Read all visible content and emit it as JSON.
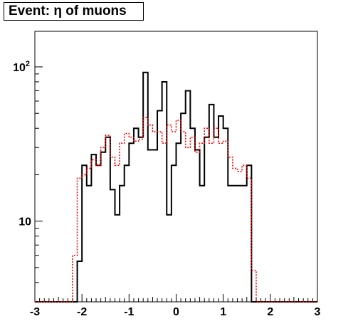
{
  "chart_data": {
    "type": "histogram",
    "title": "Event: η of muons",
    "xlabel": "",
    "ylabel": "",
    "xlim": [
      -3,
      3
    ],
    "ylim": [
      3,
      170
    ],
    "yscale": "log",
    "bins": 60,
    "bin_width": 0.1,
    "x_start": -3.0,
    "xticks": [
      -3,
      -2,
      -1,
      0,
      1,
      2,
      3
    ],
    "xtick_labels": [
      "-3",
      "-2",
      "-1",
      "0",
      "1",
      "2",
      "3"
    ],
    "yticks": [
      10,
      100
    ],
    "ytick_labels": [
      "10",
      "10²"
    ],
    "grid": false,
    "legend": "none",
    "series": [
      {
        "color": "#000000",
        "style": "solid",
        "values": [
          0,
          0,
          0,
          0,
          0,
          0,
          0,
          0,
          0,
          5.5,
          23,
          17,
          27,
          23,
          28,
          35,
          16,
          11,
          17,
          23,
          32,
          40,
          35,
          92,
          29,
          29,
          52,
          80,
          11,
          23,
          32,
          50,
          70,
          40,
          29,
          17,
          35,
          57,
          35,
          48,
          40,
          17,
          17,
          17,
          17,
          23,
          0,
          0,
          0,
          0,
          0,
          0,
          0,
          0,
          0,
          0,
          0,
          0,
          0,
          0
        ]
      },
      {
        "color": "#ff0000",
        "style": "dotted",
        "values": [
          0,
          0,
          0,
          0,
          0,
          0,
          0,
          0,
          6,
          19,
          20,
          22,
          25,
          23,
          30,
          36,
          26,
          23,
          32,
          37,
          35,
          33,
          34,
          47,
          42,
          38,
          38,
          32,
          42,
          38,
          45,
          38,
          30,
          35,
          28,
          32,
          40,
          32,
          40,
          32,
          33,
          26,
          22,
          21,
          23,
          19,
          4.8,
          0,
          0,
          0,
          0,
          0,
          0,
          0,
          0,
          0,
          0,
          0,
          0,
          0
        ]
      }
    ]
  }
}
